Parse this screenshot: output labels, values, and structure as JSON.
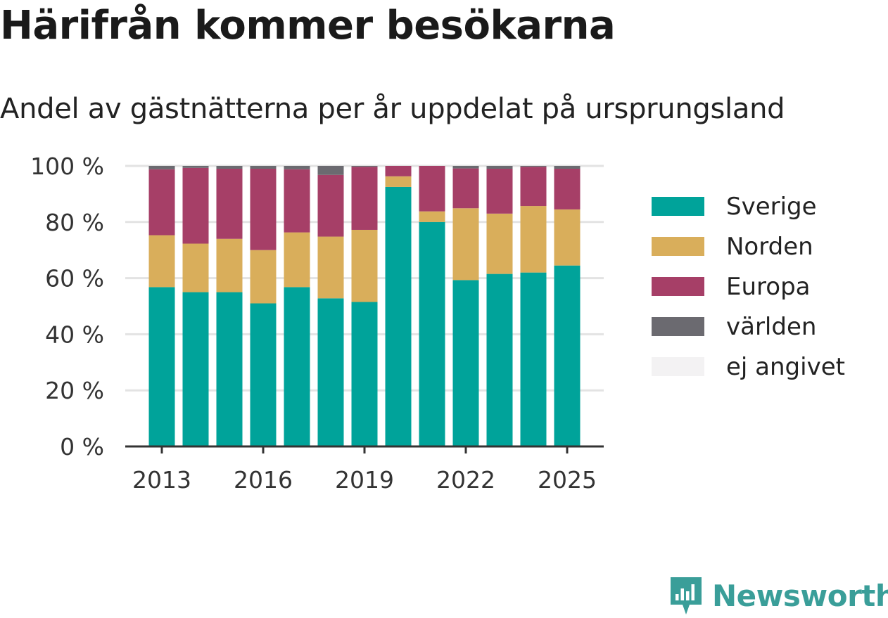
{
  "header": {
    "title": "Härifrån kommer besökarna",
    "subtitle": "Andel av gästnätterna per år uppdelat på ursprungsland"
  },
  "brand": {
    "name": "Newsworthy",
    "color": "#3a9e99"
  },
  "chart_data": {
    "type": "bar",
    "stacked": true,
    "categories": [
      "2013",
      "2014",
      "2015",
      "2016",
      "2017",
      "2018",
      "2019",
      "2020",
      "2021",
      "2022",
      "2023",
      "2024",
      "2025"
    ],
    "x_tick_labels": [
      "2013",
      "2016",
      "2019",
      "2022",
      "2025"
    ],
    "y_ticks": [
      0,
      20,
      40,
      60,
      80,
      100
    ],
    "y_tick_labels": [
      "0 %",
      "20 %",
      "40 %",
      "60 %",
      "80 %",
      "100 %"
    ],
    "ylim": [
      0,
      100
    ],
    "grid": true,
    "legend_position": "right",
    "series": [
      {
        "name": "Sverige",
        "color": "#00a39a",
        "values": [
          56.8,
          55.0,
          55.0,
          51.0,
          56.8,
          52.8,
          51.5,
          92.5,
          80.0,
          59.3,
          61.5,
          62.0,
          64.5
        ]
      },
      {
        "name": "Norden",
        "color": "#d9ae5b",
        "values": [
          18.5,
          17.3,
          19.0,
          19.0,
          19.5,
          22.0,
          25.7,
          3.8,
          3.8,
          25.6,
          21.5,
          23.7,
          20.0
        ]
      },
      {
        "name": "Europa",
        "color": "#a63f67",
        "values": [
          23.5,
          27.0,
          25.0,
          29.0,
          22.5,
          22.0,
          22.5,
          3.7,
          16.2,
          14.2,
          16.0,
          14.0,
          14.5
        ]
      },
      {
        "name": "världen",
        "color": "#6b6a70",
        "values": [
          1.2,
          0.7,
          1.0,
          1.0,
          1.2,
          3.2,
          0.3,
          0.0,
          0.0,
          0.9,
          1.0,
          0.3,
          1.0
        ]
      },
      {
        "name": "ej angivet",
        "color": "#f3f2f3",
        "values": [
          0.0,
          0.0,
          0.0,
          0.0,
          0.0,
          0.0,
          0.0,
          0.0,
          0.0,
          0.0,
          0.0,
          0.0,
          0.0
        ]
      }
    ]
  }
}
